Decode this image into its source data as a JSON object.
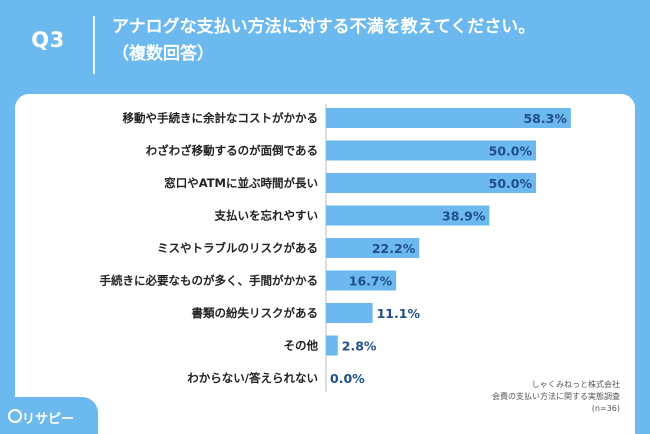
{
  "header": {
    "qnum": "Q3",
    "title": "アナログな支払い方法に対する不満を教えてください。\n（複数回答）"
  },
  "chart_data": {
    "type": "bar",
    "orientation": "horizontal",
    "categories": [
      "移動や手続きに余計なコストがかかる",
      "わざわざ移動するのが面倒である",
      "窓口やATMに並ぶ時間が長い",
      "支払いを忘れやすい",
      "ミスやトラブルのリスクがある",
      "手続きに必要なものが多く、手間がかかる",
      "書類の紛失リスクがある",
      "その他",
      "わからない/答えられない"
    ],
    "values": [
      58.3,
      50.0,
      50.0,
      38.9,
      22.2,
      16.7,
      11.1,
      2.8,
      0.0
    ],
    "value_labels": [
      "58.3%",
      "50.0%",
      "50.0%",
      "38.9%",
      "22.2%",
      "16.7%",
      "11.1%",
      "2.8%",
      "0.0%"
    ],
    "xlim": [
      0,
      70
    ],
    "bar_color": "#6cb9ef",
    "grid": false
  },
  "source": {
    "line1": "しゃくみねっと株式会社",
    "line2": "会費の支払い方法に関する実態調査",
    "line3": "(n=36)"
  },
  "logo": {
    "text": "リサピー",
    "icon": "magnifier-icon"
  },
  "colors": {
    "background": "#6cb9ef",
    "panel": "#ffffff",
    "value_text": "#1f4f86"
  }
}
